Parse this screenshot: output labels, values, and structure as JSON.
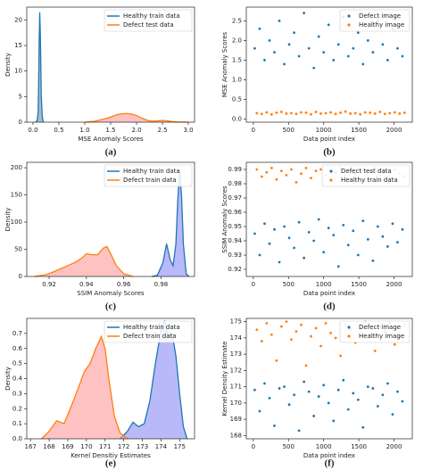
{
  "chart_data": [
    {
      "type": "area",
      "xlabel": "MSE Anomaly Scores",
      "ylabel": "Density",
      "caption": "(a)",
      "legend": "upper right",
      "xlim": [
        -0.12,
        3.12
      ],
      "ylim": [
        0,
        22.5
      ],
      "xticks": [
        {
          "value": 0,
          "label": "0.0"
        },
        {
          "value": 0.5,
          "label": "0.5"
        },
        {
          "value": 1,
          "label": "1.0"
        },
        {
          "value": 1.5,
          "label": "1.5"
        },
        {
          "value": 2,
          "label": "2.0"
        },
        {
          "value": 2.5,
          "label": "2.5"
        },
        {
          "value": 3,
          "label": "3.0"
        }
      ],
      "yticks": [
        0,
        5,
        10,
        15,
        20
      ],
      "series": [
        {
          "name": "Healthy train data",
          "color": "#1f77b4",
          "fill": "#6f8fae",
          "x": [
            0.05,
            0.08,
            0.1,
            0.11,
            0.12,
            0.13,
            0.14,
            0.15,
            0.16,
            0.18,
            0.2
          ],
          "values": [
            0,
            0.3,
            2,
            8,
            16,
            21.5,
            18,
            12,
            5,
            1,
            0
          ]
        },
        {
          "name": "Defect test data",
          "color": "#ff7f0e",
          "fill": "#ff9999",
          "x": [
            1.0,
            1.2,
            1.4,
            1.5,
            1.6,
            1.7,
            1.8,
            1.9,
            2.0,
            2.1,
            2.2,
            2.3,
            2.4,
            2.5,
            2.6,
            2.7,
            2.8,
            3.0
          ],
          "values": [
            0,
            0.2,
            0.7,
            1.0,
            1.4,
            1.6,
            1.7,
            1.6,
            1.3,
            0.8,
            0.4,
            0.2,
            0.25,
            0.35,
            0.25,
            0.1,
            0.03,
            0
          ]
        }
      ]
    },
    {
      "type": "scatter",
      "xlabel": "Data point index",
      "ylabel": "MSE Anomaly Scores",
      "caption": "(b)",
      "legend": "upper right",
      "xlim": [
        -100,
        2260
      ],
      "ylim": [
        -0.08,
        2.85
      ],
      "xticks": [
        0,
        500,
        1000,
        1500,
        2000
      ],
      "yticks": [
        {
          "value": 0,
          "label": "0.0"
        },
        {
          "value": 0.5,
          "label": "0.5"
        },
        {
          "value": 1,
          "label": "1.0"
        },
        {
          "value": 1.5,
          "label": "1.5"
        },
        {
          "value": 2,
          "label": "2.0"
        },
        {
          "value": 2.5,
          "label": "2.5"
        }
      ],
      "series": [
        {
          "name": "Defect image",
          "color": "#1f77b4",
          "x": [
            20,
            90,
            160,
            230,
            300,
            370,
            440,
            510,
            580,
            650,
            720,
            790,
            860,
            930,
            1000,
            1070,
            1140,
            1210,
            1280,
            1350,
            1420,
            1490,
            1560,
            1630,
            1700,
            1770,
            1840,
            1910,
            1980,
            2050,
            2120
          ],
          "values": [
            1.8,
            2.3,
            1.5,
            2.0,
            1.7,
            2.5,
            1.4,
            1.9,
            2.2,
            1.6,
            2.7,
            1.8,
            1.3,
            2.1,
            1.7,
            2.4,
            1.5,
            1.9,
            2.6,
            1.6,
            1.8,
            2.2,
            1.4,
            2.0,
            1.7,
            2.5,
            1.9,
            1.5,
            2.3,
            1.8,
            1.6
          ]
        },
        {
          "name": "Healthy image",
          "color": "#ff7f0e",
          "x": [
            50,
            120,
            190,
            260,
            330,
            400,
            470,
            540,
            610,
            680,
            750,
            820,
            890,
            960,
            1030,
            1100,
            1170,
            1240,
            1310,
            1380,
            1450,
            1520,
            1590,
            1660,
            1730,
            1800,
            1870,
            1940,
            2010,
            2080,
            2150
          ],
          "values": [
            0.15,
            0.13,
            0.17,
            0.12,
            0.16,
            0.18,
            0.14,
            0.15,
            0.13,
            0.17,
            0.16,
            0.12,
            0.18,
            0.14,
            0.15,
            0.17,
            0.13,
            0.16,
            0.19,
            0.14,
            0.15,
            0.12,
            0.17,
            0.16,
            0.14,
            0.18,
            0.13,
            0.15,
            0.17,
            0.14,
            0.16
          ]
        }
      ]
    },
    {
      "type": "area",
      "xlabel": "SSIM Anomaly Scores",
      "ylabel": "Density",
      "caption": "(c)",
      "legend": "upper right",
      "xlim": [
        0.908,
        0.998
      ],
      "ylim": [
        0,
        210
      ],
      "xticks": [
        0.92,
        0.94,
        0.96,
        0.98
      ],
      "yticks": [
        0,
        50,
        100,
        150,
        200
      ],
      "series": [
        {
          "name": "Healthy train data",
          "color": "#1f77b4",
          "fill": "#8a8af5",
          "x": [
            0.975,
            0.978,
            0.981,
            0.983,
            0.985,
            0.9865,
            0.988,
            0.989,
            0.99,
            0.991,
            0.992,
            0.9935,
            0.995
          ],
          "values": [
            0,
            2,
            25,
            60,
            30,
            20,
            60,
            140,
            195,
            150,
            60,
            5,
            0
          ]
        },
        {
          "name": "Defect train data",
          "color": "#ff7f0e",
          "fill": "#ff9999",
          "x": [
            0.912,
            0.918,
            0.922,
            0.926,
            0.93,
            0.934,
            0.938,
            0.94,
            0.943,
            0.946,
            0.949,
            0.951,
            0.953,
            0.956,
            0.96,
            0.965
          ],
          "values": [
            0,
            3,
            8,
            14,
            20,
            26,
            35,
            42,
            40,
            40,
            52,
            55,
            42,
            20,
            5,
            0
          ]
        }
      ]
    },
    {
      "type": "scatter",
      "xlabel": "Data point index",
      "ylabel": "SSIM Anomaly Scores",
      "caption": "(d)",
      "legend": "upper right",
      "xlim": [
        -100,
        2260
      ],
      "ylim": [
        0.915,
        0.995
      ],
      "xticks": [
        0,
        500,
        1000,
        1500,
        2000
      ],
      "yticks": [
        0.92,
        0.93,
        0.94,
        0.95,
        0.96,
        0.97,
        0.98,
        0.99
      ],
      "series": [
        {
          "name": "Defect test data",
          "color": "#1f77b4",
          "x": [
            20,
            90,
            160,
            230,
            300,
            370,
            440,
            510,
            580,
            650,
            720,
            790,
            860,
            930,
            1000,
            1070,
            1140,
            1210,
            1280,
            1350,
            1420,
            1490,
            1560,
            1630,
            1700,
            1770,
            1840,
            1910,
            1980,
            2050,
            2120
          ],
          "values": [
            0.945,
            0.93,
            0.952,
            0.938,
            0.948,
            0.925,
            0.95,
            0.942,
            0.935,
            0.953,
            0.928,
            0.946,
            0.94,
            0.955,
            0.932,
            0.949,
            0.944,
            0.922,
            0.951,
            0.937,
            0.947,
            0.93,
            0.954,
            0.941,
            0.926,
            0.95,
            0.943,
            0.936,
            0.952,
            0.939,
            0.948
          ]
        },
        {
          "name": "Healthy train data",
          "color": "#ff7f0e",
          "x": [
            50,
            120,
            190,
            260,
            330,
            400,
            470,
            540,
            610,
            680,
            750,
            820,
            890,
            960,
            1030,
            1100,
            1170,
            1240,
            1310,
            1380,
            1450,
            1520,
            1590,
            1660,
            1730,
            1800,
            1870,
            1940,
            2010,
            2080,
            2150
          ],
          "values": [
            0.99,
            0.985,
            0.988,
            0.991,
            0.983,
            0.989,
            0.986,
            0.99,
            0.981,
            0.987,
            0.991,
            0.984,
            0.989,
            0.99,
            0.986,
            0.982,
            0.988,
            0.991,
            0.985,
            0.989,
            0.987,
            0.99,
            0.983,
            0.988,
            0.991,
            0.986,
            0.989,
            0.984,
            0.99,
            0.987,
            0.985
          ]
        }
      ]
    },
    {
      "type": "area",
      "xlabel": "Kernel Densitiy Estimates",
      "ylabel": "Density",
      "caption": "(e)",
      "legend": "upper right",
      "xlim": [
        166.8,
        175.8
      ],
      "ylim": [
        0,
        0.8
      ],
      "xticks": [
        167,
        168,
        169,
        170,
        171,
        172,
        173,
        174,
        175
      ],
      "yticks": [
        {
          "value": 0,
          "label": "0.0"
        },
        0.1,
        0.2,
        0.3,
        0.4,
        0.5,
        0.6,
        0.7
      ],
      "series": [
        {
          "name": "Healthy train data",
          "color": "#1f77b4",
          "fill": "#8a8af5",
          "x": [
            171.8,
            172.2,
            172.5,
            172.8,
            173.1,
            173.4,
            173.7,
            174.0,
            174.2,
            174.4,
            174.6,
            174.8,
            175.0,
            175.2,
            175.4
          ],
          "values": [
            0,
            0.05,
            0.11,
            0.08,
            0.1,
            0.25,
            0.5,
            0.72,
            0.78,
            0.68,
            0.7,
            0.55,
            0.3,
            0.08,
            0
          ]
        },
        {
          "name": "Defect train data",
          "color": "#ff7f0e",
          "fill": "#ff9999",
          "x": [
            167.6,
            168,
            168.4,
            168.8,
            169.2,
            169.6,
            169.9,
            170.2,
            170.5,
            170.8,
            171,
            171.2,
            171.5,
            171.8,
            172.2
          ],
          "values": [
            0,
            0.05,
            0.12,
            0.1,
            0.22,
            0.35,
            0.45,
            0.5,
            0.6,
            0.68,
            0.6,
            0.4,
            0.15,
            0.04,
            0
          ]
        }
      ]
    },
    {
      "type": "scatter",
      "xlabel": "Data point index",
      "ylabel": "Kernel Density Estimate",
      "caption": "(f)",
      "legend": "upper right",
      "xlim": [
        -100,
        2260
      ],
      "ylim": [
        167.8,
        175.2
      ],
      "xticks": [
        0,
        500,
        1000,
        1500,
        2000
      ],
      "yticks": [
        168,
        169,
        170,
        171,
        172,
        173,
        174,
        175
      ],
      "series": [
        {
          "name": "Defect image",
          "color": "#1f77b4",
          "x": [
            20,
            90,
            160,
            230,
            300,
            370,
            440,
            510,
            580,
            650,
            720,
            790,
            860,
            930,
            1000,
            1070,
            1140,
            1210,
            1280,
            1350,
            1420,
            1490,
            1560,
            1630,
            1700,
            1770,
            1840,
            1910,
            1980,
            2050,
            2120
          ],
          "values": [
            170.8,
            169.5,
            171.2,
            170.3,
            168.6,
            170.9,
            171.0,
            169.9,
            170.5,
            168.3,
            171.3,
            170.7,
            169.2,
            170.4,
            171.1,
            170.0,
            168.9,
            170.8,
            171.4,
            169.6,
            170.6,
            170.2,
            168.5,
            171.0,
            170.9,
            169.8,
            170.5,
            171.2,
            169.3,
            170.7,
            170.1
          ]
        },
        {
          "name": "Healthy image",
          "color": "#ff7f0e",
          "x": [
            50,
            120,
            190,
            260,
            330,
            400,
            470,
            540,
            610,
            680,
            750,
            820,
            890,
            960,
            1030,
            1100,
            1170,
            1240,
            1310,
            1380,
            1450,
            1520,
            1590,
            1660,
            1730,
            1800,
            1870,
            1940,
            2010,
            2080,
            2150
          ],
          "values": [
            174.5,
            173.8,
            174.9,
            174.2,
            172.6,
            174.7,
            175.0,
            173.9,
            174.4,
            174.8,
            172.3,
            174.1,
            174.6,
            173.5,
            174.9,
            174.3,
            174.0,
            172.9,
            174.8,
            174.5,
            173.7,
            174.6,
            175.0,
            174.2,
            173.2,
            174.7,
            174.4,
            174.9,
            173.6,
            174.1,
            174.8
          ]
        }
      ]
    }
  ]
}
